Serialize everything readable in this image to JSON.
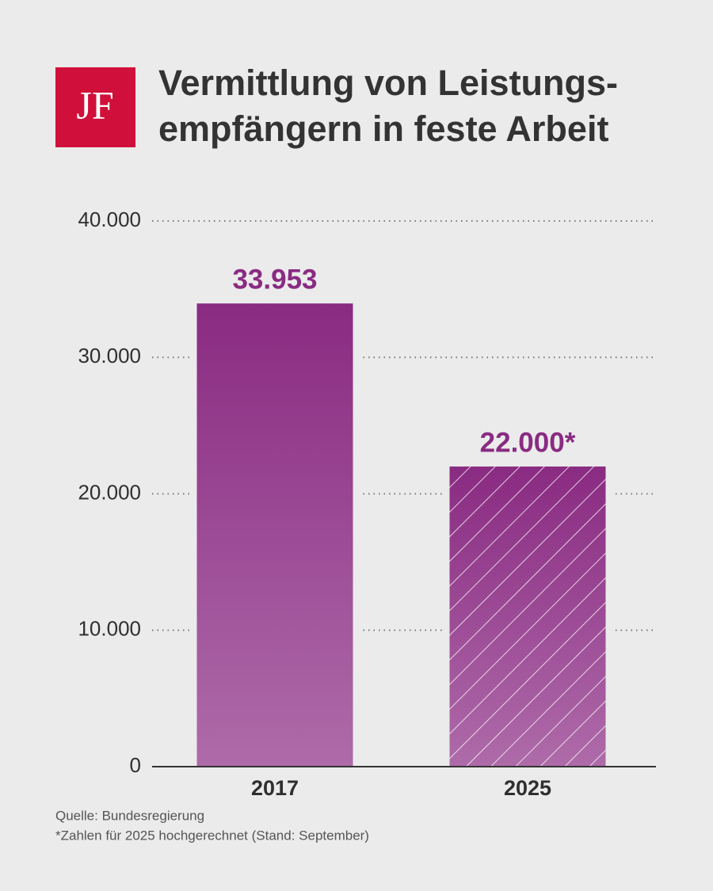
{
  "chart_data": {
    "type": "bar",
    "logo": "JF",
    "title": [
      "Vermittlung von Leistungs-",
      "empfängern in feste Arbeit"
    ],
    "categories": [
      "2017",
      "2025"
    ],
    "values": [
      33953,
      22000
    ],
    "value_labels": [
      "33.953",
      "22.000*"
    ],
    "hatched": [
      false,
      true
    ],
    "color": "#8a2b82",
    "color_bottom": "#ae6ba9",
    "label_color": "#8a2b82",
    "ylim": [
      0,
      40000
    ],
    "yticks": [
      0,
      {
        "value": 10000,
        "label": "10.000"
      },
      {
        "value": 20000,
        "label": "20.000"
      },
      {
        "value": 30000,
        "label": "30.000"
      },
      {
        "value": 40000,
        "label": "40.000"
      }
    ],
    "grid": true,
    "source": "Quelle: Bundesregierung",
    "note": "*Zahlen für 2025 hochgerechnet (Stand: September)"
  }
}
